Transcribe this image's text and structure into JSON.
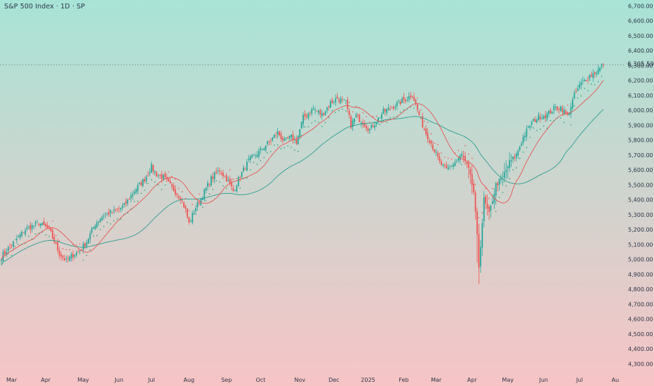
{
  "header": {
    "title": "S&P 500 Index · 1D · SP"
  },
  "last_price_label": "6,305.59",
  "colors": {
    "bg_top": "#a8e4d6",
    "bg_bottom": "#f7c4c6",
    "up": "#26a69a",
    "down": "#ef5350",
    "ma_fast": "#e8534f",
    "ma_slow": "#2a9d8f",
    "stops": "#2f9e6e",
    "text": "#2a3547",
    "price_line": "#6b7a8a"
  },
  "chart_data": {
    "type": "candlestick",
    "title": "S&P 500 Index · 1D · SP",
    "ylim": [
      4260,
      6720
    ],
    "y_ticks": [
      4300,
      4400,
      4500,
      4600,
      4700,
      4800,
      4900,
      5000,
      5100,
      5200,
      5300,
      5400,
      5500,
      5600,
      5700,
      5800,
      5900,
      6000,
      6100,
      6200,
      6300,
      6400,
      6500,
      6600,
      6700
    ],
    "y_tick_labels": [
      "4,300.00",
      "4,400.00",
      "4,500.00",
      "4,600.00",
      "4,700.00",
      "4,800.00",
      "4,900.00",
      "5,000.00",
      "5,100.00",
      "5,200.00",
      "5,300.00",
      "5,400.00",
      "5,500.00",
      "5,600.00",
      "5,700.00",
      "5,800.00",
      "5,900.00",
      "6,000.00",
      "6,100.00",
      "6,200.00",
      "6,300.00",
      "6,400.00",
      "6,500.00",
      "6,600.00",
      "6,700.00"
    ],
    "x_labels": [
      {
        "label": "Mar",
        "bar": 6
      },
      {
        "label": "Apr",
        "bar": 26
      },
      {
        "label": "May",
        "bar": 48
      },
      {
        "label": "Jun",
        "bar": 69
      },
      {
        "label": "Jul",
        "bar": 88
      },
      {
        "label": "Aug",
        "bar": 110
      },
      {
        "label": "Sep",
        "bar": 132
      },
      {
        "label": "Oct",
        "bar": 152
      },
      {
        "label": "Nov",
        "bar": 175
      },
      {
        "label": "Dec",
        "bar": 195
      },
      {
        "label": "2025",
        "bar": 215
      },
      {
        "label": "Feb",
        "bar": 236
      },
      {
        "label": "Mar",
        "bar": 255
      },
      {
        "label": "Apr",
        "bar": 276
      },
      {
        "label": "May",
        "bar": 297
      },
      {
        "label": "Jun",
        "bar": 318
      },
      {
        "label": "Jul",
        "bar": 339
      },
      {
        "label": "Au",
        "bar": 360
      }
    ],
    "last_price": 6305.59,
    "series": [
      {
        "name": "S&P 500 Index",
        "kind": "candles",
        "close_anchors": [
          [
            0,
            5020
          ],
          [
            6,
            5100
          ],
          [
            14,
            5200
          ],
          [
            22,
            5245
          ],
          [
            28,
            5200
          ],
          [
            34,
            5040
          ],
          [
            38,
            4990
          ],
          [
            42,
            5030
          ],
          [
            46,
            5060
          ],
          [
            50,
            5120
          ],
          [
            55,
            5240
          ],
          [
            60,
            5300
          ],
          [
            66,
            5320
          ],
          [
            72,
            5360
          ],
          [
            78,
            5460
          ],
          [
            84,
            5540
          ],
          [
            88,
            5620
          ],
          [
            91,
            5570
          ],
          [
            95,
            5550
          ],
          [
            100,
            5480
          ],
          [
            105,
            5420
          ],
          [
            108,
            5330
          ],
          [
            110,
            5240
          ],
          [
            114,
            5350
          ],
          [
            118,
            5430
          ],
          [
            123,
            5540
          ],
          [
            128,
            5600
          ],
          [
            132,
            5540
          ],
          [
            136,
            5460
          ],
          [
            140,
            5560
          ],
          [
            145,
            5660
          ],
          [
            152,
            5730
          ],
          [
            158,
            5800
          ],
          [
            162,
            5850
          ],
          [
            166,
            5790
          ],
          [
            170,
            5820
          ],
          [
            173,
            5790
          ],
          [
            177,
            5950
          ],
          [
            183,
            6010
          ],
          [
            188,
            5970
          ],
          [
            193,
            6050
          ],
          [
            197,
            6080
          ],
          [
            202,
            6050
          ],
          [
            205,
            5900
          ],
          [
            208,
            5960
          ],
          [
            212,
            5920
          ],
          [
            216,
            5870
          ],
          [
            220,
            5930
          ],
          [
            224,
            5990
          ],
          [
            228,
            6010
          ],
          [
            233,
            6050
          ],
          [
            238,
            6080
          ],
          [
            241,
            6110
          ],
          [
            244,
            6000
          ],
          [
            248,
            5870
          ],
          [
            252,
            5780
          ],
          [
            257,
            5650
          ],
          [
            261,
            5600
          ],
          [
            266,
            5650
          ],
          [
            270,
            5700
          ],
          [
            274,
            5600
          ],
          [
            277,
            5450
          ],
          [
            279,
            5150
          ],
          [
            280,
            4950
          ],
          [
            283,
            5400
          ],
          [
            286,
            5300
          ],
          [
            290,
            5500
          ],
          [
            294,
            5550
          ],
          [
            298,
            5650
          ],
          [
            302,
            5700
          ],
          [
            306,
            5820
          ],
          [
            311,
            5920
          ],
          [
            316,
            5960
          ],
          [
            320,
            5970
          ],
          [
            324,
            6010
          ],
          [
            328,
            6020
          ],
          [
            332,
            5960
          ],
          [
            336,
            6100
          ],
          [
            340,
            6180
          ],
          [
            345,
            6230
          ],
          [
            349,
            6260
          ],
          [
            353,
            6305.59
          ]
        ]
      },
      {
        "name": "MA fast",
        "kind": "ma",
        "period": 20
      },
      {
        "name": "MA slow",
        "kind": "ma",
        "period": 50
      },
      {
        "name": "Trailing stops",
        "kind": "dots"
      }
    ]
  }
}
